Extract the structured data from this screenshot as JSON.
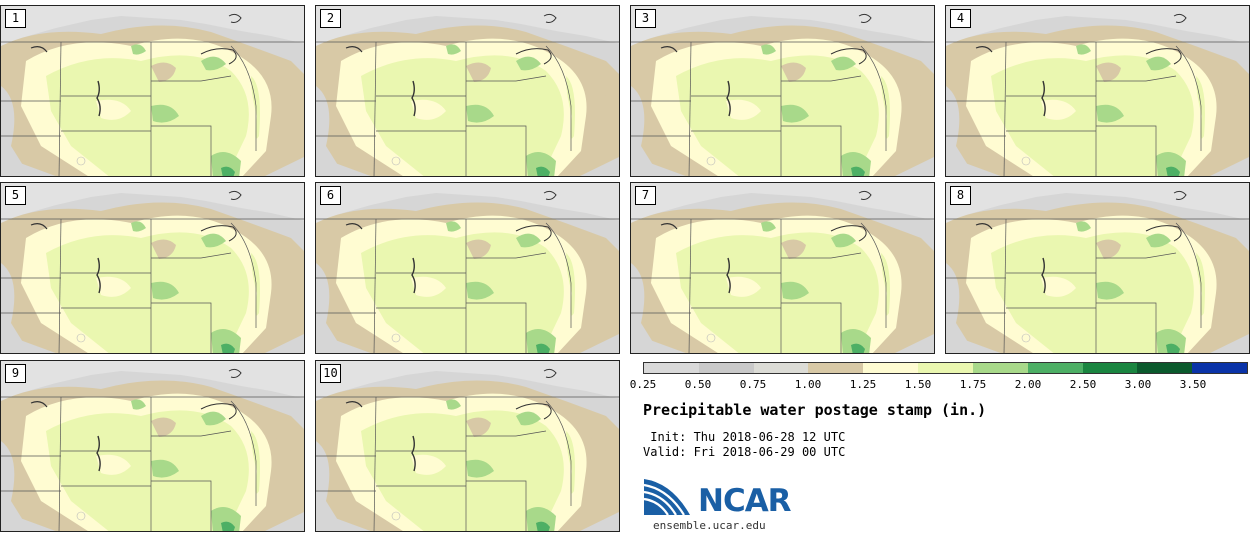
{
  "panels": [
    {
      "label": "1"
    },
    {
      "label": "2"
    },
    {
      "label": "3"
    },
    {
      "label": "4"
    },
    {
      "label": "5"
    },
    {
      "label": "6"
    },
    {
      "label": "7"
    },
    {
      "label": "8"
    },
    {
      "label": "9"
    },
    {
      "label": "10"
    }
  ],
  "legend": {
    "ticks": [
      "0.25",
      "0.50",
      "0.75",
      "1.00",
      "1.25",
      "1.50",
      "1.75",
      "2.00",
      "2.50",
      "3.00",
      "3.50"
    ],
    "colors": [
      "#d9d9d9",
      "#c9c9c9",
      "#dcdcd6",
      "#d8c9a6",
      "#fffcd2",
      "#eaf7b0",
      "#a8d98a",
      "#4daf65",
      "#1a8540",
      "#0b5a2d",
      "#0a33a8"
    ]
  },
  "title": "Precipitable water postage stamp (in.)",
  "init": " Init: Thu 2018-06-28 12 UTC",
  "valid": "Valid: Fri 2018-06-29 00 UTC",
  "logo": {
    "text": "NCAR",
    "url": "ensemble.ucar.edu"
  }
}
